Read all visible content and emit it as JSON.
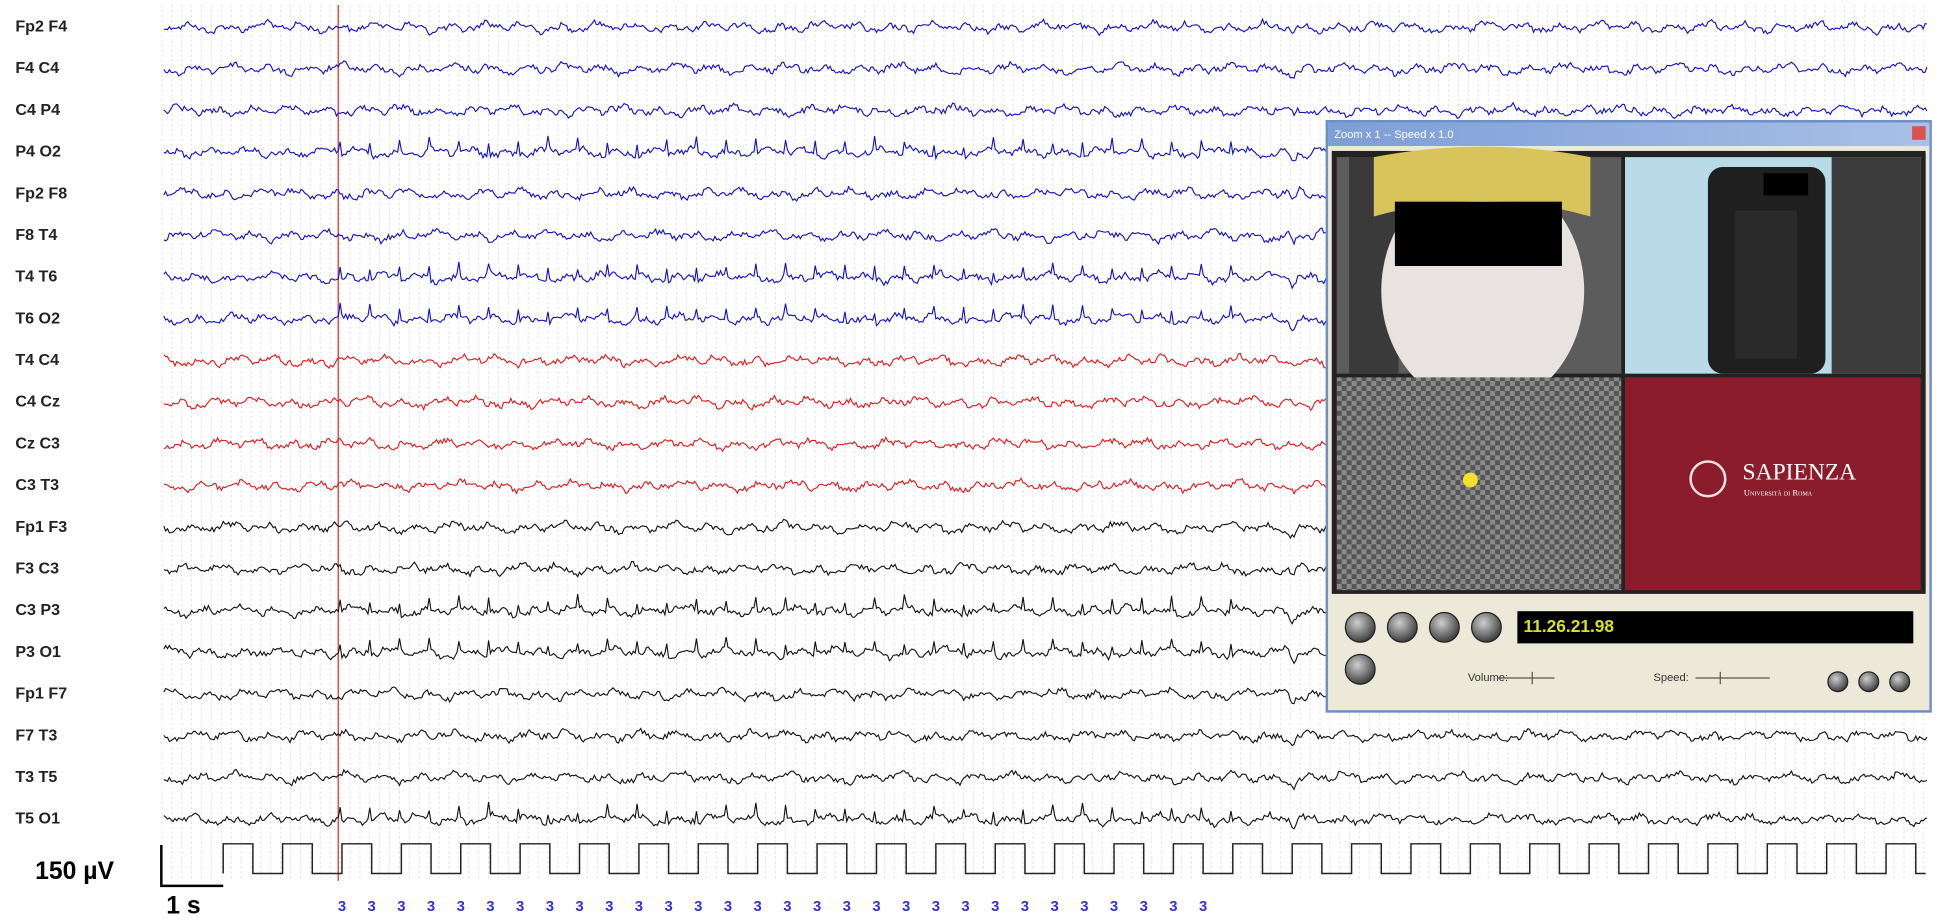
{
  "channels": [
    "Fp2 F4",
    "F4 C4",
    "C4 P4",
    "P4 O2",
    "Fp2 F8",
    "F8 T4",
    "T4 T6",
    "T6 O2",
    "T4 C4",
    "C4 Cz",
    "Cz C3",
    "C3 T3",
    "Fp1 F3",
    "F3 C3",
    "C3 P3",
    "P3 O1",
    "Fp1 F7",
    "F7 T3",
    "T3 T5",
    "T5 O1"
  ],
  "calibration": {
    "amplitude": "150 µV",
    "time": "1 s"
  },
  "stim_markers": [
    "3",
    "3",
    "3",
    "3",
    "3",
    "3",
    "3",
    "3",
    "3",
    "3",
    "3",
    "3",
    "3",
    "3",
    "3",
    "3",
    "3",
    "3",
    "3",
    "3",
    "3",
    "3",
    "3",
    "3",
    "3",
    "3",
    "3",
    "3",
    "3",
    "3"
  ],
  "video_window": {
    "title": "Zoom x 1 -- Speed x 1.0",
    "time_display": "11.26.21.98",
    "volume_label": "Volume:",
    "speed_label": "Speed:",
    "logo": {
      "name": "SAPIENZA",
      "subtitle": "Università di Roma"
    }
  }
}
